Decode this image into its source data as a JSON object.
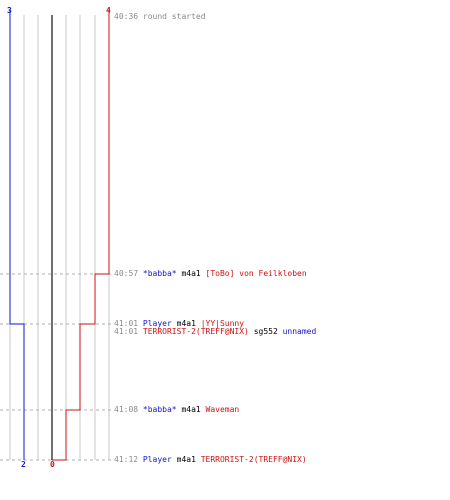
{
  "colors": {
    "blue": "#1515c8",
    "red": "#cc1111",
    "gray": "#8a8a8a",
    "grid": "#c8c8c8",
    "dark_line": "#707070",
    "text": "#000000"
  },
  "score": {
    "top_blue": "3",
    "top_red": "4",
    "bottom_blue": "2",
    "bottom_red": "0"
  },
  "events": [
    {
      "time": "40:36",
      "parts": [
        {
          "text": "round started",
          "color": "gray"
        }
      ]
    },
    {
      "time": "40:57",
      "parts": [
        {
          "text": "*babba*",
          "color": "blue"
        },
        {
          "text": "m4a1",
          "color": "text"
        },
        {
          "text": "[ToBo] von Feilkloben",
          "color": "red"
        }
      ]
    },
    {
      "time": "41:01",
      "parts": [
        {
          "text": "Player",
          "color": "blue"
        },
        {
          "text": "m4a1",
          "color": "text"
        },
        {
          "text": "|YY|Sunny",
          "color": "red"
        }
      ]
    },
    {
      "time": "41:01",
      "parts": [
        {
          "text": "TERRORIST-2(TREFF@NIX)",
          "color": "red"
        },
        {
          "text": "sg552",
          "color": "text"
        },
        {
          "text": "unnamed",
          "color": "blue"
        }
      ]
    },
    {
      "time": "41:08",
      "parts": [
        {
          "text": "*babba*",
          "color": "blue"
        },
        {
          "text": "m4a1",
          "color": "text"
        },
        {
          "text": "Waveman",
          "color": "red"
        }
      ]
    },
    {
      "time": "41:12",
      "parts": [
        {
          "text": "Player",
          "color": "blue"
        },
        {
          "text": "m4a1",
          "color": "text"
        },
        {
          "text": "TERRORIST-2(TREFF@NIX)",
          "color": "red"
        }
      ]
    }
  ]
}
